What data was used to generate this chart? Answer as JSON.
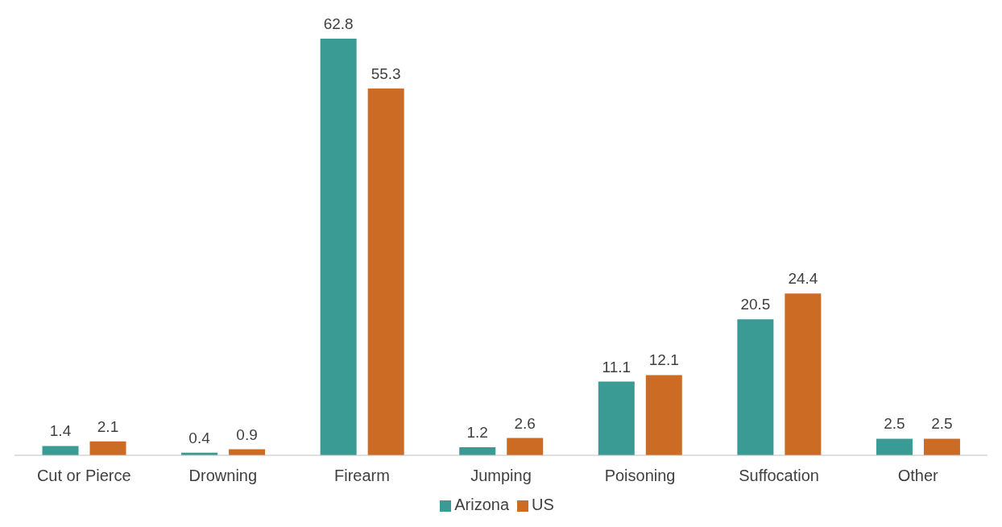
{
  "chart_data": {
    "type": "bar",
    "categories": [
      "Cut or Pierce",
      "Drowning",
      "Firearm",
      "Jumping",
      "Poisoning",
      "Suffocation",
      "Other"
    ],
    "series": [
      {
        "name": "Arizona",
        "color": "#3a9b94",
        "values": [
          1.4,
          0.4,
          62.8,
          1.2,
          11.1,
          20.5,
          2.5
        ]
      },
      {
        "name": "US",
        "color": "#cc6b24",
        "values": [
          2.1,
          0.9,
          55.3,
          2.6,
          12.1,
          24.4,
          2.5
        ]
      }
    ],
    "data_labels": true,
    "legend": "bottom",
    "grid": false,
    "tick_labels": "x"
  }
}
